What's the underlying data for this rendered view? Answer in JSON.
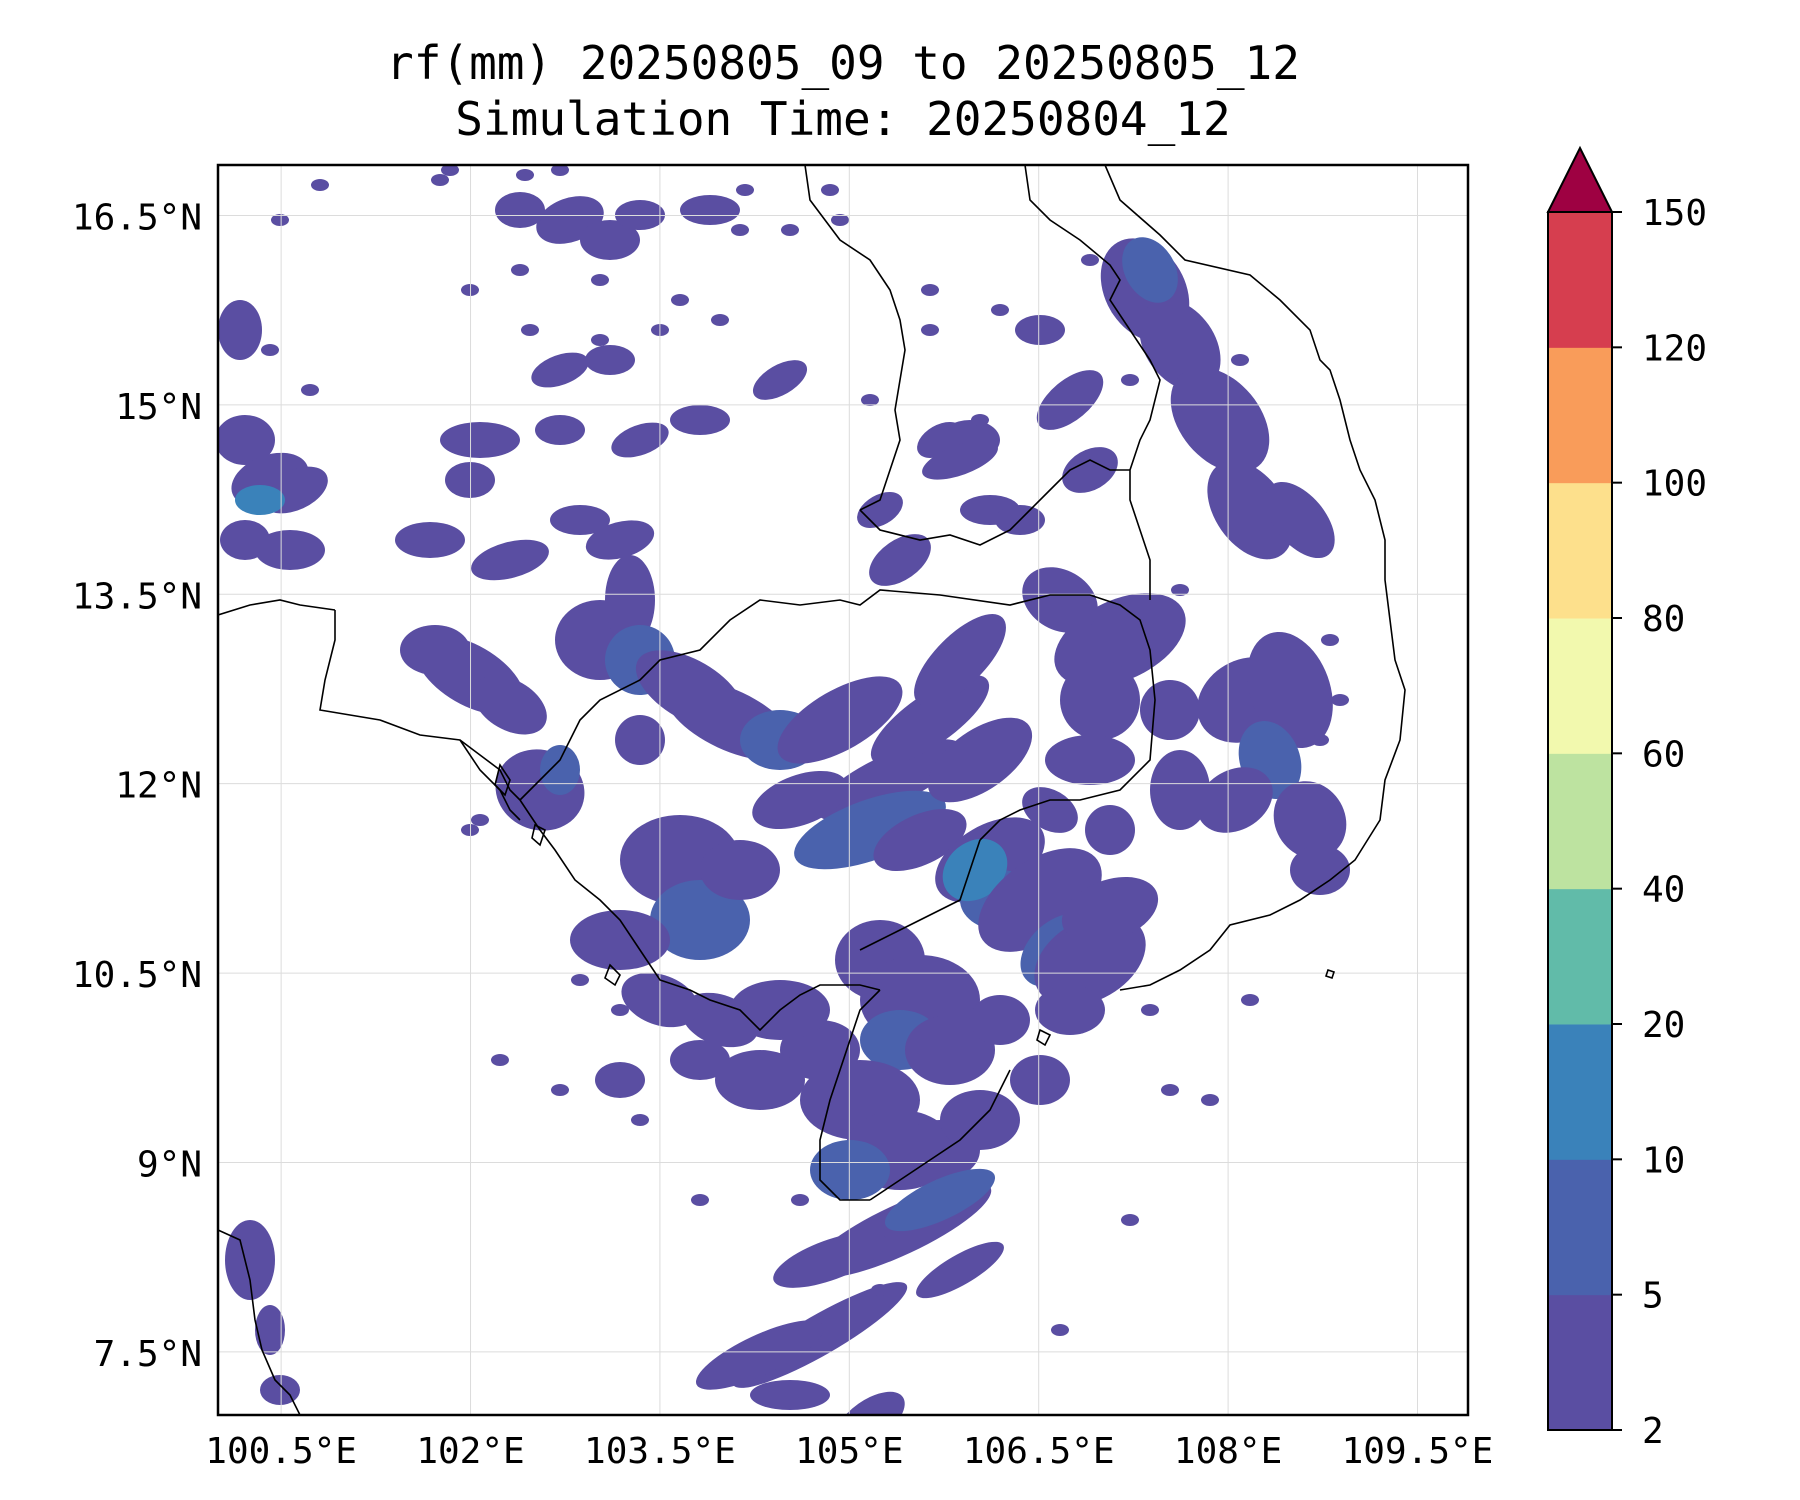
{
  "title": {
    "line1": "rf(mm) 20250805_09 to 20250805_12",
    "line2": "Simulation Time: 20250804_12"
  },
  "map": {
    "lon_range": [
      100.0,
      109.9
    ],
    "lat_range": [
      7.0,
      16.9
    ],
    "lat_ticks": [
      {
        "value": 16.5,
        "label": "16.5°N"
      },
      {
        "value": 15.0,
        "label": "15°N"
      },
      {
        "value": 13.5,
        "label": "13.5°N"
      },
      {
        "value": 12.0,
        "label": "12°N"
      },
      {
        "value": 10.5,
        "label": "10.5°N"
      },
      {
        "value": 9.0,
        "label": "9°N"
      },
      {
        "value": 7.5,
        "label": "7.5°N"
      }
    ],
    "lon_ticks": [
      {
        "value": 100.5,
        "label": "100.5°E"
      },
      {
        "value": 102.0,
        "label": "102°E"
      },
      {
        "value": 103.5,
        "label": "103.5°E"
      },
      {
        "value": 105.0,
        "label": "105°E"
      },
      {
        "value": 106.5,
        "label": "106.5°E"
      },
      {
        "value": 108.0,
        "label": "108°E"
      },
      {
        "value": 109.5,
        "label": "109.5°E"
      }
    ],
    "grid": true
  },
  "colorbar": {
    "levels": [
      "2",
      "5",
      "10",
      "20",
      "40",
      "60",
      "80",
      "100",
      "120",
      "150"
    ],
    "colors": [
      "#5a4ea2",
      "#4a62ad",
      "#3a82ba",
      "#61bba9",
      "#bde3a0",
      "#f2f9ae",
      "#fde08c",
      "#f99c5a",
      "#d63e4f",
      "#9e0142"
    ],
    "extend": "max"
  }
}
